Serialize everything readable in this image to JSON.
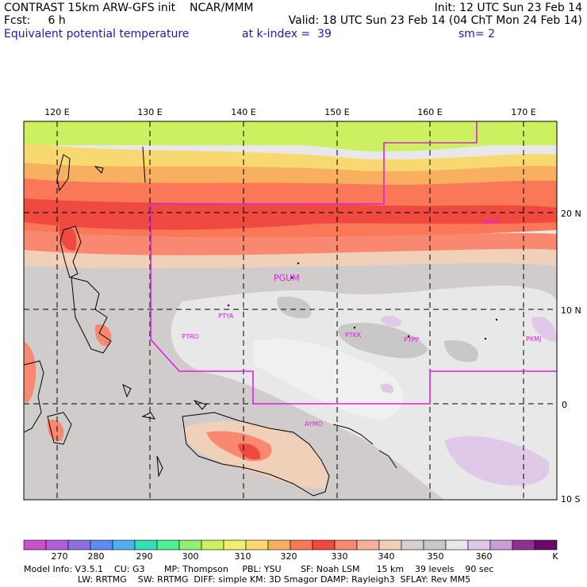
{
  "header": {
    "left_line1": "CONTRAST 15km ARW-GFS init    NCAR/MMM",
    "left_line2": "Fcst:     6 h",
    "left_line3": "Equivalent potential temperature",
    "right_line1": "Init: 12 UTC Sun 23 Feb 14",
    "right_line2": "Valid: 18 UTC Sun 23 Feb 14 (04 ChT Mon 24 Feb 14)",
    "right_line3_a": "at k-index =  39",
    "right_line3_b": "sm= 2"
  },
  "map": {
    "lon_labels": [
      "120 E",
      "130 E",
      "140 E",
      "150 E",
      "160 E",
      "170 E"
    ],
    "lat_labels": [
      "20 N",
      "10 N",
      "0",
      "10 S"
    ],
    "stations": [
      {
        "id": "PGUM"
      },
      {
        "id": "PTYA"
      },
      {
        "id": "PTRO"
      },
      {
        "id": "PTKK"
      },
      {
        "id": "PTPP"
      },
      {
        "id": "PKMJ"
      },
      {
        "id": "PWAK"
      },
      {
        "id": "AYMO"
      }
    ]
  },
  "colorbar": {
    "labels": [
      "270",
      "280",
      "290",
      "300",
      "310",
      "320",
      "330",
      "340",
      "350",
      "360"
    ],
    "unit": "K",
    "colors": [
      "#cc4fcc",
      "#b05fd8",
      "#8a6fe0",
      "#5f8af0",
      "#4fb0f0",
      "#30e0b8",
      "#50f090",
      "#90f070",
      "#ccf060",
      "#f0f070",
      "#f8d870",
      "#f8b060",
      "#f87858",
      "#f04a40",
      "#f88870",
      "#f8b09a",
      "#f0d0b8",
      "#d8d0d0",
      "#c8c8c8",
      "#e8e8e8",
      "#e0c8e8",
      "#cc9cd8",
      "#903090",
      "#6a0a6a"
    ]
  },
  "footer": {
    "line1": "Model Info: V3.5.1    CU: G3       MP: Thompson     PBL: YSU       SF: Noah LSM      15 km    39 levels    90 sec",
    "line2": "LW: RRTMG    SW: RRTMG  DIFF: simple KM: 3D Smagor DAMP: Rayleigh3  SFLAY: Rev MM5"
  }
}
